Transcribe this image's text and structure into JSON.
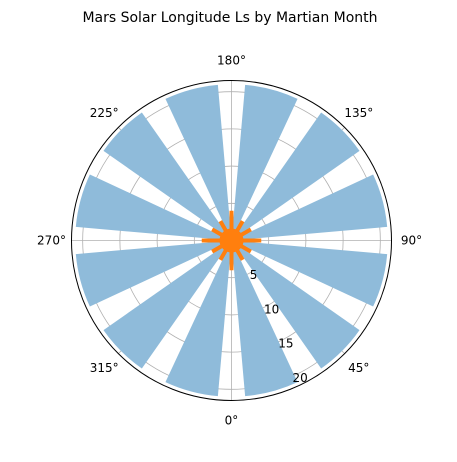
{
  "chart_data": {
    "type": "bar",
    "projection": "polar",
    "title": "Mars Solar Longitude Ls by Martian Month",
    "theta_zero_location": "S",
    "theta_direction": "counterclockwise",
    "theta_ticks": [
      "0°",
      "45°",
      "90°",
      "135°",
      "180°",
      "225°",
      "270°",
      "315°"
    ],
    "theta_tick_degrees": [
      0,
      45,
      90,
      135,
      180,
      225,
      270,
      315
    ],
    "r_ticks": [
      "5",
      "10",
      "15",
      "20"
    ],
    "r_tick_values": [
      5,
      10,
      15,
      20
    ],
    "r_label_position_deg": 22.5,
    "rlim": [
      0,
      21.5
    ],
    "grid": true,
    "series": [
      {
        "kind": "bar",
        "color": "#8fbbda",
        "bar_width_deg": 20,
        "bottom": 0,
        "theta_deg": [
          15,
          45,
          75,
          105,
          135,
          165,
          195,
          225,
          255,
          285,
          315,
          345
        ],
        "values": [
          21,
          21,
          21,
          21,
          21,
          21,
          21,
          21,
          21,
          21,
          21,
          21
        ]
      },
      {
        "kind": "stem",
        "color": "#ff7f0e",
        "theta_deg": [
          0,
          30,
          60,
          90,
          120,
          150,
          180,
          210,
          240,
          270,
          300,
          330
        ],
        "values": [
          4,
          3,
          3,
          4,
          3,
          3,
          4,
          3,
          3,
          4,
          3,
          3
        ]
      }
    ],
    "center_marker": {
      "color": "#ff7f0e",
      "value": 0
    }
  }
}
